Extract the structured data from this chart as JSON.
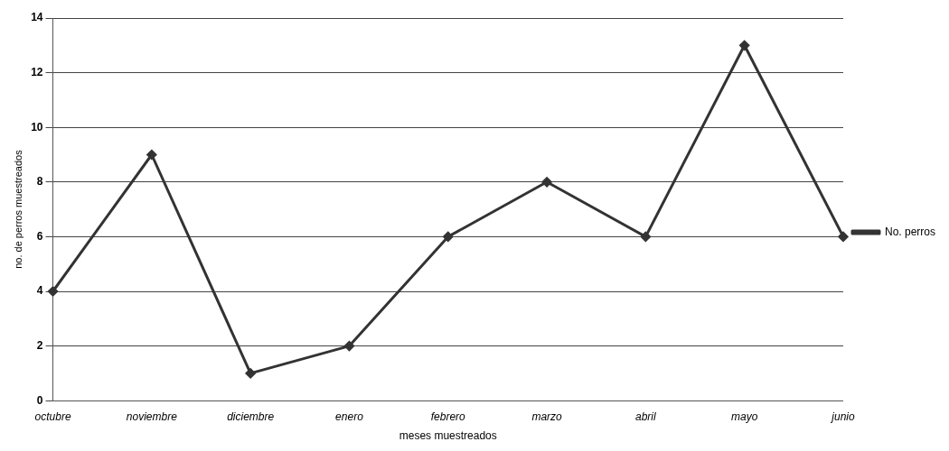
{
  "chart_data": {
    "type": "line",
    "xlabel": "meses muestreados",
    "ylabel": "no. de perros muestreados",
    "categories": [
      "octubre",
      "noviembre",
      "diciembre",
      "enero",
      "febrero",
      "marzo",
      "abril",
      "mayo",
      "junio"
    ],
    "series": [
      {
        "name": "No. perros",
        "color": "#333333",
        "values": [
          4,
          9,
          1,
          2,
          6,
          8,
          6,
          13,
          6
        ]
      }
    ],
    "ylim": [
      0,
      14
    ],
    "yticks": [
      0,
      2,
      4,
      6,
      8,
      10,
      12,
      14
    ],
    "grid": "y",
    "legend": "right",
    "marker": "diamond",
    "line_style": "solid"
  }
}
